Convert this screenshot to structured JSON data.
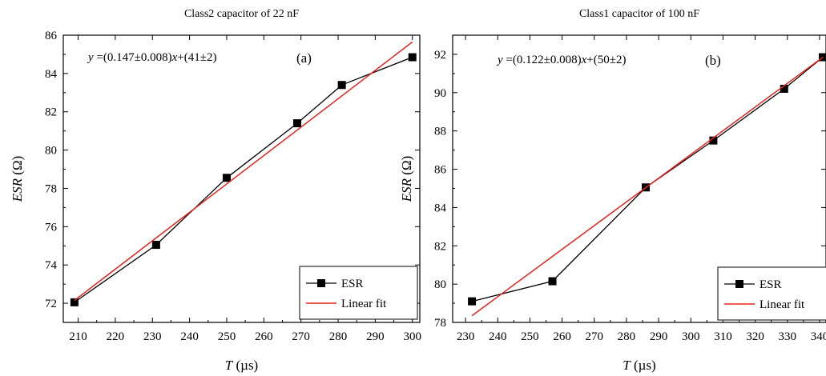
{
  "chart_data": [
    {
      "type": "line",
      "title": "Class2 capacitor of 22 nF",
      "panel_label": "(a)",
      "equation": {
        "prefix": "y",
        "body": " =(0.147±0.008)",
        "var": "x",
        "tail": "+(41±2)"
      },
      "xlabel": {
        "var": "T",
        "unit": " (µs)"
      },
      "ylabel": {
        "var": "ESR",
        "unit": " (Ω)"
      },
      "xlim": [
        206,
        302
      ],
      "ylim": [
        71,
        86
      ],
      "xticks": [
        210,
        220,
        230,
        240,
        250,
        260,
        270,
        280,
        290,
        300
      ],
      "yticks": [
        72,
        74,
        76,
        78,
        80,
        82,
        84,
        86
      ],
      "series": [
        {
          "name": "ESR",
          "color": "#000000",
          "marker": "square",
          "x": [
            209,
            231,
            250,
            269,
            281,
            300
          ],
          "y": [
            72.05,
            75.05,
            78.55,
            81.4,
            83.4,
            84.85
          ]
        },
        {
          "name": "Linear fit",
          "color": "#e8231f",
          "marker": "none",
          "x": [
            209,
            300
          ],
          "y": [
            72.15,
            85.65
          ]
        }
      ],
      "legend": "bottom-right"
    },
    {
      "type": "line",
      "title": "Class1 capacitor of 100 nF",
      "panel_label": "(b)",
      "equation": {
        "prefix": "y",
        "body": " =(0.122±0.008)",
        "var": "x",
        "tail": "+(50±2)"
      },
      "xlabel": {
        "var": "T",
        "unit": " (µs)"
      },
      "ylabel": {
        "var": "ESR",
        "unit": " (Ω)"
      },
      "xlim": [
        226,
        342
      ],
      "ylim": [
        78,
        93
      ],
      "xticks": [
        230,
        240,
        250,
        260,
        270,
        280,
        290,
        300,
        310,
        320,
        330,
        340
      ],
      "yticks": [
        78,
        80,
        82,
        84,
        86,
        88,
        90,
        92
      ],
      "series": [
        {
          "name": "ESR",
          "color": "#000000",
          "marker": "square",
          "x": [
            232,
            257,
            286,
            307,
            329,
            341
          ],
          "y": [
            79.1,
            80.15,
            85.05,
            87.5,
            90.2,
            91.85
          ]
        },
        {
          "name": "Linear fit",
          "color": "#e8231f",
          "marker": "none",
          "x": [
            232,
            341
          ],
          "y": [
            78.35,
            91.85
          ]
        }
      ],
      "legend": "bottom-right"
    }
  ]
}
